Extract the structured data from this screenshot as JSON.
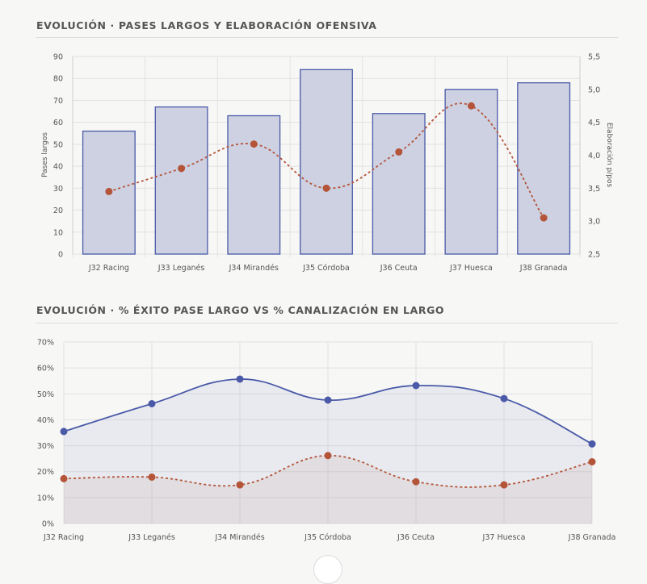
{
  "charts": {
    "chart1": {
      "title": "EVOLUCIÓN · PASES LARGOS Y ELABORACIÓN OFENSIVA"
    },
    "chart2": {
      "title": "EVOLUCIÓN · % ÉXITO PASE LARGO VS % CANALIZACIÓN EN LARGO"
    }
  },
  "colors": {
    "bar_fill": "#ced1e2",
    "bar_stroke": "#4a5aa8",
    "orange": "#b4553a",
    "blue": "#4a5aa8",
    "grid": "#e2e2e2"
  },
  "chart_data": [
    {
      "type": "bar",
      "title": "EVOLUCIÓN · PASES LARGOS Y ELABORACIÓN OFENSIVA",
      "categories": [
        "J32 Racing",
        "J33 Leganés",
        "J34 Mirandés",
        "J35 Córdoba",
        "J36 Ceuta",
        "J37 Huesca",
        "J38 Granada"
      ],
      "ylabel": "Pases largos",
      "y2label": "Elaboración p/pos",
      "ylim": [
        0,
        90
      ],
      "y2lim": [
        2.5,
        5.5
      ],
      "yticks": [
        "0",
        "10",
        "20",
        "30",
        "40",
        "50",
        "60",
        "70",
        "80",
        "90"
      ],
      "y2ticks": [
        "2,5",
        "3,0",
        "3,5",
        "4,0",
        "4,5",
        "5,0",
        "5,5"
      ],
      "series": [
        {
          "type": "bar",
          "axis": "left",
          "values": [
            56,
            67,
            63,
            84,
            64,
            75,
            78
          ]
        },
        {
          "type": "line",
          "axis": "right",
          "style": "dashed",
          "values": [
            3.45,
            3.8,
            4.17,
            3.5,
            4.05,
            4.75,
            3.05
          ]
        }
      ],
      "grid": true
    },
    {
      "type": "area",
      "title": "EVOLUCIÓN · % ÉXITO PASE LARGO VS % CANALIZACIÓN EN LARGO",
      "categories": [
        "J32 Racing",
        "J33 Leganés",
        "J34 Mirandés",
        "J35 Córdoba",
        "J36 Ceuta",
        "J37 Huesca",
        "J38 Granada"
      ],
      "ylim": [
        0,
        70
      ],
      "yticks": [
        "0%",
        "10%",
        "20%",
        "30%",
        "40%",
        "50%",
        "60%",
        "70%"
      ],
      "series": [
        {
          "style": "solid",
          "values": [
            35.5,
            46.2,
            55.7,
            47.6,
            53.2,
            48.2,
            30.7
          ]
        },
        {
          "style": "dashed",
          "values": [
            17.3,
            17.9,
            14.9,
            26.2,
            16.1,
            14.9,
            23.8
          ]
        }
      ],
      "grid": true
    }
  ]
}
